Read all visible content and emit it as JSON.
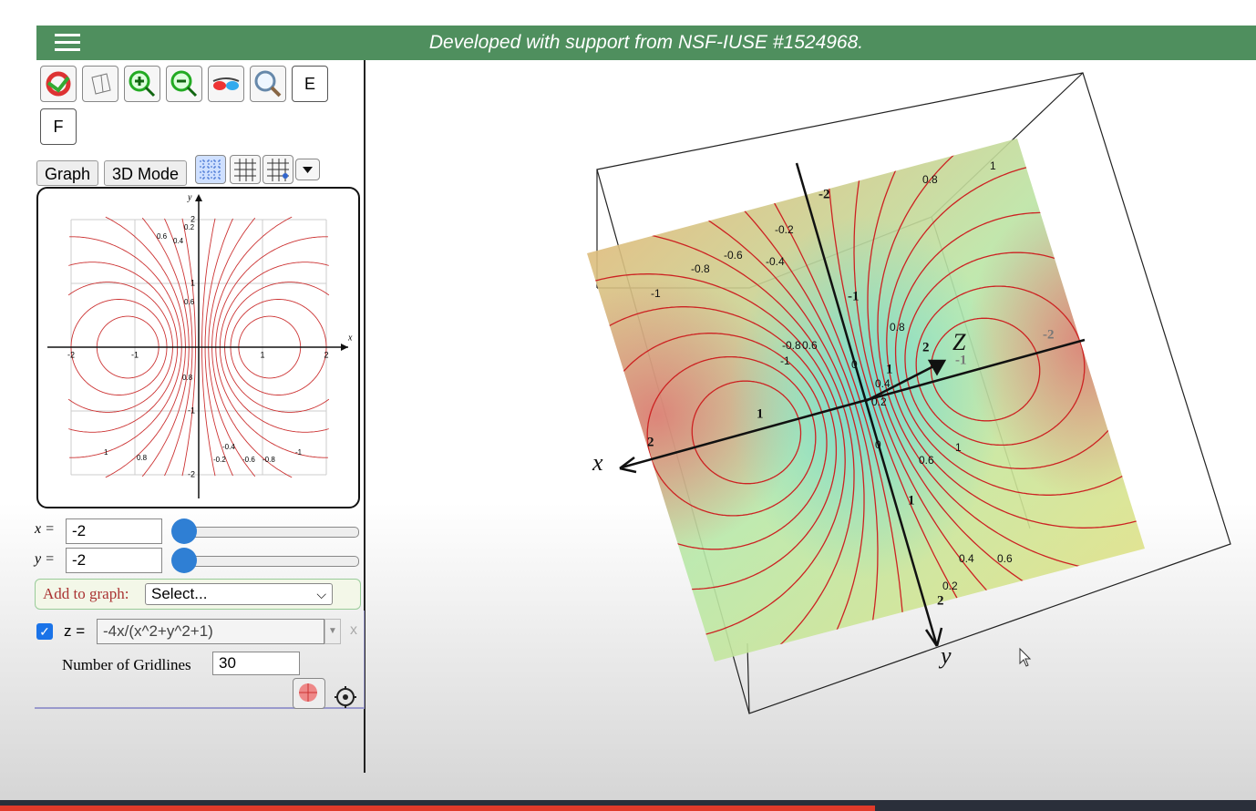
{
  "banner": "Developed with support from NSF-IUSE #1524968.",
  "toolbar": {
    "buttons": [
      "E",
      "F"
    ]
  },
  "tabs": [
    "Graph",
    "3D Mode"
  ],
  "contour_plot": {
    "axis_labels": [
      "x",
      "y"
    ],
    "x_ticks": [
      "-2",
      "-1",
      "1",
      "2"
    ],
    "y_ticks": [
      "2",
      "1",
      "-1",
      "-2"
    ],
    "contour_labels": [
      "0.6",
      "0.4",
      "0.2",
      "0.6",
      "0.8",
      "-0.4",
      "-0.2",
      "-0.6",
      "-0.8",
      "1",
      "-1",
      "0.8"
    ]
  },
  "sliders": [
    {
      "label": "x =",
      "value": "-2"
    },
    {
      "label": "y =",
      "value": "-2"
    }
  ],
  "add_to_graph": {
    "label": "Add to graph:",
    "selected": "Select..."
  },
  "function": {
    "label": "z =",
    "expression": "-4x/(x^2+y^2+1)",
    "close": "x",
    "gridlines_label": "Number of Gridlines",
    "gridlines": "30"
  },
  "plot3d": {
    "axis_labels": [
      "x",
      "y",
      "Z"
    ],
    "tick_labels": [
      "2",
      "1",
      "-2",
      "-1",
      "1",
      "2",
      "1",
      "2",
      "-1",
      "-2"
    ],
    "contour_labels": [
      "0.8",
      "1",
      "-0.2",
      "-0.6",
      "-0.4",
      "-0.8",
      "-1",
      "0.8",
      "-0.8",
      "0.6",
      "-1",
      "0",
      "0.4",
      "0.2",
      "0.6",
      "1",
      "0",
      "0.4",
      "0.6",
      "0.2"
    ]
  }
}
